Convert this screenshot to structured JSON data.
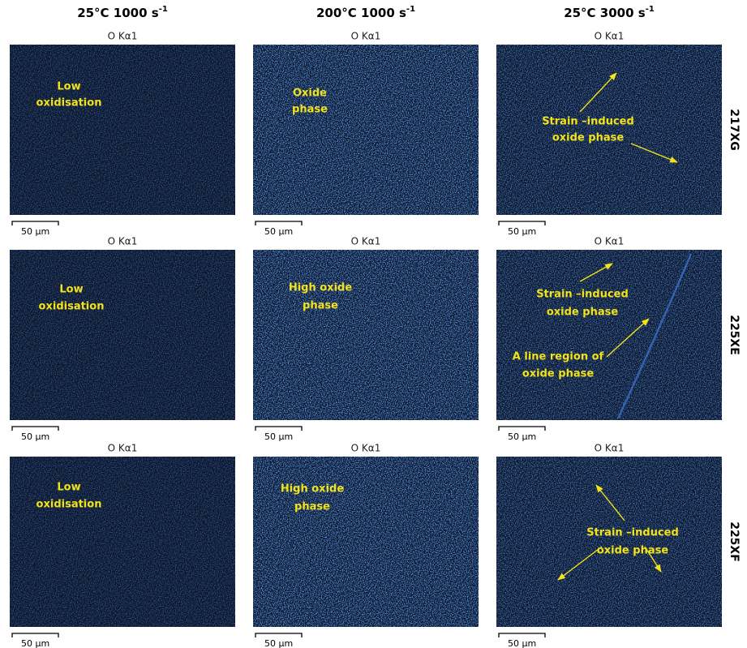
{
  "columns": [
    {
      "label": "25°C 1000 s",
      "sup": "-1"
    },
    {
      "label": "200°C 1000 s",
      "sup": "-1"
    },
    {
      "label": "25°C 3000 s",
      "sup": "-1"
    }
  ],
  "rows": [
    {
      "label": "217XG",
      "panels": [
        {
          "element": "O Kα1",
          "annotations": [
            [
              "Low",
              "oxidisation"
            ]
          ],
          "scale_bar": "50 µm"
        },
        {
          "element": "O Kα1",
          "annotations": [
            [
              "Oxide",
              "phase"
            ]
          ],
          "scale_bar": "50 µm"
        },
        {
          "element": "O Kα1",
          "annotations": [
            [
              "Strain –induced",
              "oxide phase"
            ]
          ],
          "scale_bar": "50 µm"
        }
      ]
    },
    {
      "label": "225XE",
      "panels": [
        {
          "element": "O Kα1",
          "annotations": [
            [
              "Low",
              "oxidisation"
            ]
          ],
          "scale_bar": "50 µm"
        },
        {
          "element": "O Kα1",
          "annotations": [
            [
              "High oxide",
              "phase"
            ]
          ],
          "scale_bar": "50 µm"
        },
        {
          "element": "O Kα1",
          "annotations": [
            [
              "Strain –induced",
              "oxide phase"
            ],
            [
              "A line region of",
              "oxide phase"
            ]
          ],
          "scale_bar": "50 µm"
        }
      ]
    },
    {
      "label": "225XF",
      "panels": [
        {
          "element": "O Kα1",
          "annotations": [
            [
              "Low",
              "oxidisation"
            ]
          ],
          "scale_bar": "50 µm"
        },
        {
          "element": "O Kα1",
          "annotations": [
            [
              "High oxide",
              "phase"
            ]
          ],
          "scale_bar": "50 µm"
        },
        {
          "element": "O Kα1",
          "annotations": [
            [
              "Strain –induced",
              "oxide phase"
            ]
          ],
          "scale_bar": "50 µm"
        }
      ]
    }
  ]
}
